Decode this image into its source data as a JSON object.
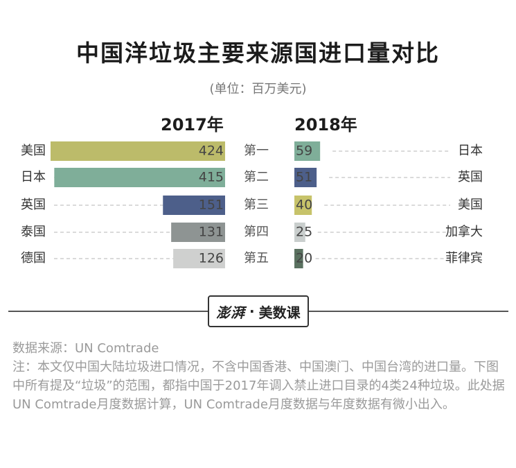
{
  "title": "中国洋垃圾主要来源国进口量对比",
  "unit": "(单位：百万美元)",
  "chart_data": [
    {
      "type": "bar",
      "title": "2017年",
      "categories": [
        "美国",
        "日本",
        "英国",
        "泰国",
        "德国"
      ],
      "values": [
        424,
        415,
        151,
        131,
        126
      ],
      "colors": [
        "#bcbb6a",
        "#7fae99",
        "#4d5f8a",
        "#8e9493",
        "#cfd0cf"
      ]
    },
    {
      "type": "bar",
      "title": "2018年",
      "categories": [
        "日本",
        "英国",
        "美国",
        "加拿大",
        "菲律宾"
      ],
      "values": [
        59,
        51,
        40,
        25,
        20
      ],
      "colors": [
        "#7fae99",
        "#4d5f8a",
        "#c7c36a",
        "#c9cecd",
        "#5a7160"
      ]
    }
  ],
  "ranks": [
    "第一",
    "第二",
    "第三",
    "第四",
    "第五"
  ],
  "logo": {
    "brand": "澎湃",
    "sub": "美数课"
  },
  "source": "数据来源：UN Comtrade",
  "note": "注：本文仅中国大陆垃圾进口情况，不含中国香港、中国澳门、中国台湾的进口量。下图中所有提及“垃圾”的范围，都指中国于2017年调入禁止进口目录的4类24种垃圾。此处据UN Comtrade月度数据计算，UN Comtrade月度数据与年度数据有微小出入。"
}
